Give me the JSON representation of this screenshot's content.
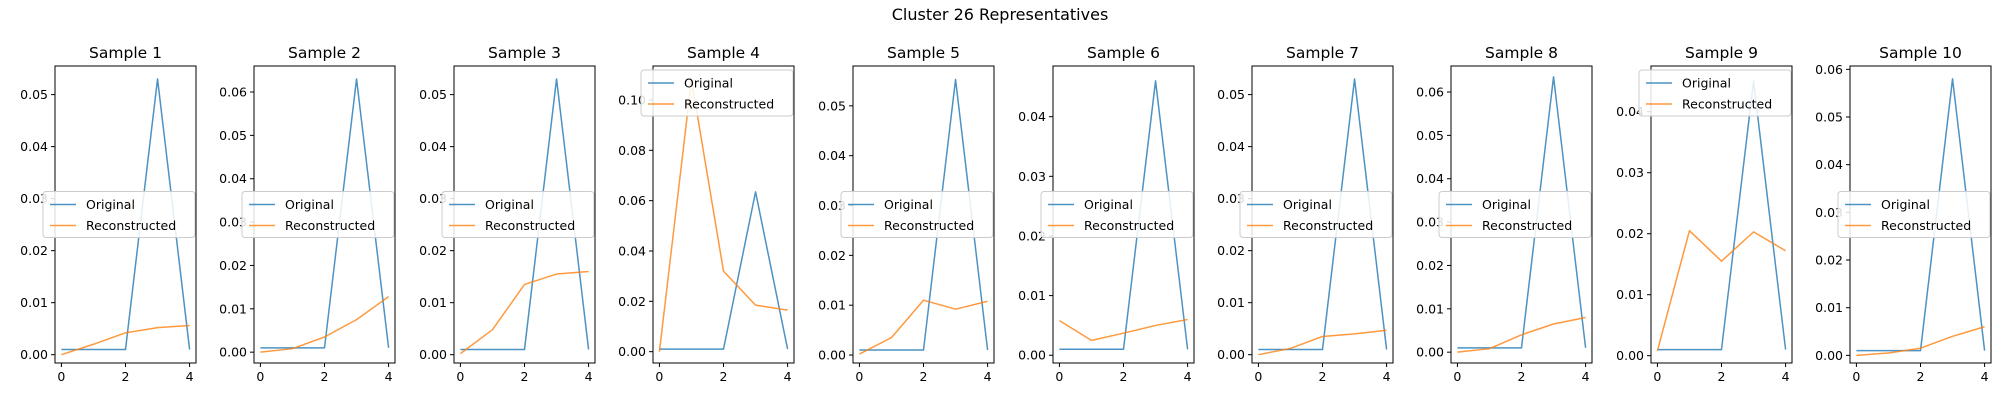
{
  "figure": {
    "suptitle": "Cluster 26 Representatives"
  },
  "colors": {
    "original": "#1f77b4",
    "reconstructed": "#ff7f0e",
    "axes": "#000000",
    "background": "#ffffff"
  },
  "chart_data": [
    {
      "type": "line",
      "title": "Sample 1",
      "x": [
        0,
        1,
        2,
        3,
        4
      ],
      "xticks": [
        "0",
        "2",
        "4"
      ],
      "ylim": [
        -0.0016,
        0.0555
      ],
      "yticks": [
        "0.00",
        "0.01",
        "0.02",
        "0.03",
        "0.04",
        "0.05"
      ],
      "legend": "center-left",
      "series": [
        {
          "name": "Original",
          "values": [
            0.001,
            0.001,
            0.001,
            0.053,
            0.001
          ]
        },
        {
          "name": "Reconstructed",
          "values": [
            0.0,
            0.002,
            0.0042,
            0.0052,
            0.0056
          ]
        }
      ]
    },
    {
      "type": "line",
      "title": "Sample 2",
      "x": [
        0,
        1,
        2,
        3,
        4
      ],
      "xticks": [
        "0",
        "2",
        "4"
      ],
      "ylim": [
        -0.0025,
        0.066
      ],
      "yticks": [
        "0.00",
        "0.01",
        "0.02",
        "0.03",
        "0.04",
        "0.05",
        "0.06"
      ],
      "legend": "center-left",
      "series": [
        {
          "name": "Original",
          "values": [
            0.001,
            0.001,
            0.001,
            0.063,
            0.001
          ]
        },
        {
          "name": "Reconstructed",
          "values": [
            0.0,
            0.0008,
            0.0035,
            0.0075,
            0.0128
          ]
        }
      ]
    },
    {
      "type": "line",
      "title": "Sample 3",
      "x": [
        0,
        1,
        2,
        3,
        4
      ],
      "xticks": [
        "0",
        "2",
        "4"
      ],
      "ylim": [
        -0.0016,
        0.0555
      ],
      "yticks": [
        "0.00",
        "0.01",
        "0.02",
        "0.03",
        "0.04",
        "0.05"
      ],
      "legend": "center-left",
      "series": [
        {
          "name": "Original",
          "values": [
            0.001,
            0.001,
            0.001,
            0.053,
            0.001
          ]
        },
        {
          "name": "Reconstructed",
          "values": [
            0.0002,
            0.0048,
            0.0135,
            0.0155,
            0.016
          ]
        }
      ]
    },
    {
      "type": "line",
      "title": "Sample 4",
      "x": [
        0,
        1,
        2,
        3,
        4
      ],
      "xticks": [
        "0",
        "2",
        "4"
      ],
      "ylim": [
        -0.0045,
        0.1135
      ],
      "yticks": [
        "0.00",
        "0.02",
        "0.04",
        "0.06",
        "0.08",
        "0.10"
      ],
      "legend": "top-left",
      "series": [
        {
          "name": "Original",
          "values": [
            0.001,
            0.001,
            0.001,
            0.0635,
            0.001
          ]
        },
        {
          "name": "Reconstructed",
          "values": [
            0.0,
            0.108,
            0.032,
            0.0185,
            0.0165
          ]
        }
      ]
    },
    {
      "type": "line",
      "title": "Sample 5",
      "x": [
        0,
        1,
        2,
        3,
        4
      ],
      "xticks": [
        "0",
        "2",
        "4"
      ],
      "ylim": [
        -0.0016,
        0.058
      ],
      "yticks": [
        "0.00",
        "0.01",
        "0.02",
        "0.03",
        "0.04",
        "0.05"
      ],
      "legend": "center-left",
      "series": [
        {
          "name": "Original",
          "values": [
            0.001,
            0.001,
            0.001,
            0.0553,
            0.001
          ]
        },
        {
          "name": "Reconstructed",
          "values": [
            0.0002,
            0.0035,
            0.011,
            0.0092,
            0.0108
          ]
        }
      ]
    },
    {
      "type": "line",
      "title": "Sample 6",
      "x": [
        0,
        1,
        2,
        3,
        4
      ],
      "xticks": [
        "0",
        "2",
        "4"
      ],
      "ylim": [
        -0.0013,
        0.0485
      ],
      "yticks": [
        "0.00",
        "0.01",
        "0.02",
        "0.03",
        "0.04"
      ],
      "legend": "center-left",
      "series": [
        {
          "name": "Original",
          "values": [
            0.001,
            0.001,
            0.001,
            0.046,
            0.001
          ]
        },
        {
          "name": "Reconstructed",
          "values": [
            0.0058,
            0.0025,
            0.0037,
            0.005,
            0.006
          ]
        }
      ]
    },
    {
      "type": "line",
      "title": "Sample 7",
      "x": [
        0,
        1,
        2,
        3,
        4
      ],
      "xticks": [
        "0",
        "2",
        "4"
      ],
      "ylim": [
        -0.0016,
        0.0555
      ],
      "yticks": [
        "0.00",
        "0.01",
        "0.02",
        "0.03",
        "0.04",
        "0.05"
      ],
      "legend": "center-left",
      "series": [
        {
          "name": "Original",
          "values": [
            0.001,
            0.001,
            0.001,
            0.053,
            0.001
          ]
        },
        {
          "name": "Reconstructed",
          "values": [
            0.0,
            0.0012,
            0.0035,
            0.004,
            0.0047
          ]
        }
      ]
    },
    {
      "type": "line",
      "title": "Sample 8",
      "x": [
        0,
        1,
        2,
        3,
        4
      ],
      "xticks": [
        "0",
        "2",
        "4"
      ],
      "ylim": [
        -0.0025,
        0.066
      ],
      "yticks": [
        "0.00",
        "0.01",
        "0.02",
        "0.03",
        "0.04",
        "0.05",
        "0.06"
      ],
      "legend": "center-left",
      "series": [
        {
          "name": "Original",
          "values": [
            0.001,
            0.001,
            0.001,
            0.0635,
            0.001
          ]
        },
        {
          "name": "Reconstructed",
          "values": [
            0.0,
            0.0008,
            0.004,
            0.0065,
            0.008
          ]
        }
      ]
    },
    {
      "type": "line",
      "title": "Sample 9",
      "x": [
        0,
        1,
        2,
        3,
        4
      ],
      "xticks": [
        "0",
        "2",
        "4"
      ],
      "ylim": [
        -0.0012,
        0.0475
      ],
      "yticks": [
        "0.00",
        "0.01",
        "0.02",
        "0.03",
        "0.04"
      ],
      "legend": "top-left",
      "series": [
        {
          "name": "Original",
          "values": [
            0.001,
            0.001,
            0.001,
            0.045,
            0.001
          ]
        },
        {
          "name": "Reconstructed",
          "values": [
            0.0008,
            0.0205,
            0.0155,
            0.0203,
            0.0172
          ]
        }
      ]
    },
    {
      "type": "line",
      "title": "Sample 10",
      "x": [
        0,
        1,
        2,
        3,
        4
      ],
      "xticks": [
        "0",
        "2",
        "4"
      ],
      "ylim": [
        -0.0016,
        0.0607
      ],
      "yticks": [
        "0.00",
        "0.01",
        "0.02",
        "0.03",
        "0.04",
        "0.05",
        "0.06"
      ],
      "legend": "center-left",
      "series": [
        {
          "name": "Original",
          "values": [
            0.001,
            0.001,
            0.001,
            0.058,
            0.001
          ]
        },
        {
          "name": "Reconstructed",
          "values": [
            0.0,
            0.0005,
            0.0015,
            0.004,
            0.006
          ]
        }
      ]
    }
  ]
}
